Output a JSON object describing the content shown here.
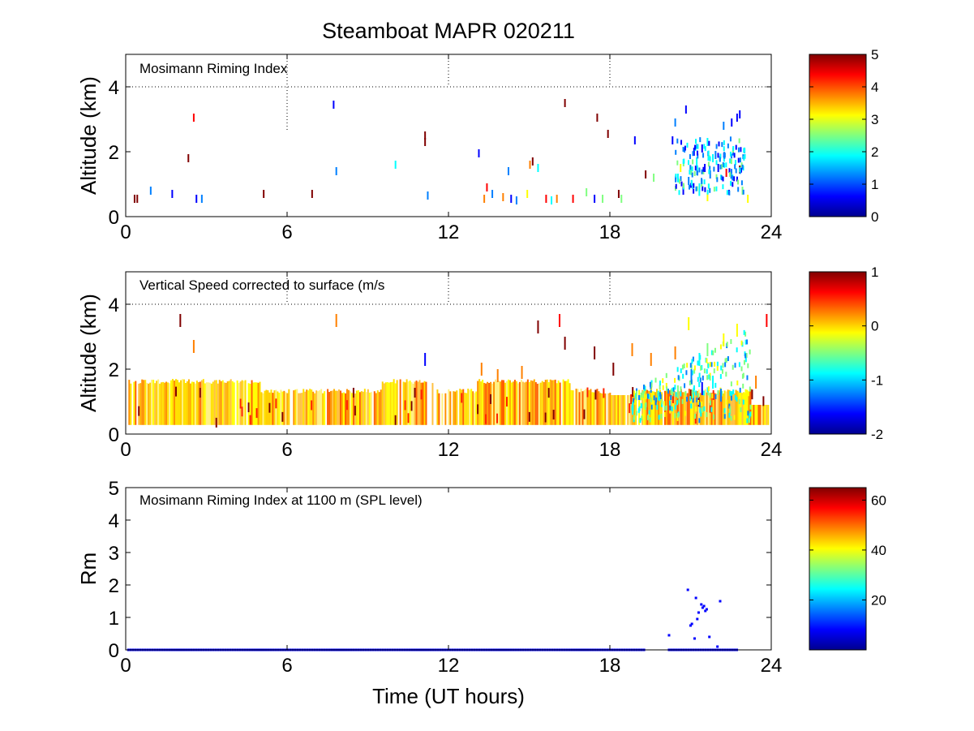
{
  "figure": {
    "title": "Steamboat MAPR 020211",
    "xlabel": "Time (UT hours)"
  },
  "colormap": [
    "#00008f",
    "#0000ff",
    "#0080ff",
    "#00ffff",
    "#80ff80",
    "#ffff00",
    "#ff8000",
    "#ff0000",
    "#800000"
  ],
  "chart_data": [
    {
      "type": "heatmap",
      "title": "Mosimann Riming Index",
      "ylabel": "Altitude (km)",
      "xlim": [
        0,
        24
      ],
      "ylim": [
        0,
        5
      ],
      "xticks": [
        "0",
        "6",
        "12",
        "18",
        "24"
      ],
      "yticks": [
        "0",
        "2",
        "4"
      ],
      "grid": "dotted",
      "colorbar": {
        "min": 0,
        "max": 5,
        "ticks": [
          "0",
          "1",
          "2",
          "3",
          "4",
          "5"
        ]
      },
      "points": [
        [
          0.3,
          0.55,
          4.7
        ],
        [
          0.4,
          0.55,
          4.8
        ],
        [
          0.9,
          0.8,
          1.2
        ],
        [
          1.7,
          0.7,
          0.5
        ],
        [
          2.3,
          1.8,
          4.8
        ],
        [
          2.5,
          3.05,
          4.5
        ],
        [
          2.6,
          0.55,
          0.9
        ],
        [
          2.8,
          0.55,
          1.5
        ],
        [
          5.1,
          0.7,
          4.7
        ],
        [
          6.9,
          0.7,
          4.8
        ],
        [
          7.8,
          1.4,
          1.5
        ],
        [
          7.7,
          3.45,
          0.9
        ],
        [
          10,
          1.6,
          2.0
        ],
        [
          11.1,
          2.5,
          4.8
        ],
        [
          11.1,
          2.3,
          4.9
        ],
        [
          11.2,
          0.65,
          1.0
        ],
        [
          13.1,
          1.95,
          0.8
        ],
        [
          13.3,
          0.55,
          3.5
        ],
        [
          13.4,
          0.9,
          4.3
        ],
        [
          13.6,
          0.7,
          1.5
        ],
        [
          14,
          0.6,
          4.0
        ],
        [
          14.2,
          1.4,
          1.2
        ],
        [
          14.3,
          0.55,
          0.8
        ],
        [
          14.5,
          0.5,
          1.4
        ],
        [
          14.9,
          0.7,
          3.0
        ],
        [
          15,
          1.6,
          3.6
        ],
        [
          15.1,
          1.7,
          4.7
        ],
        [
          15.3,
          1.5,
          1.9
        ],
        [
          15.6,
          0.55,
          4.4
        ],
        [
          15.8,
          0.5,
          1.8
        ],
        [
          16,
          0.55,
          4.0
        ],
        [
          16.3,
          3.5,
          4.9
        ],
        [
          16.6,
          0.55,
          4.1
        ],
        [
          17.1,
          0.75,
          2.2
        ],
        [
          17.4,
          0.55,
          0.9
        ],
        [
          17.5,
          3.05,
          4.7
        ],
        [
          17.7,
          0.55,
          2.5
        ],
        [
          17.9,
          2.55,
          4.8
        ],
        [
          18.3,
          0.7,
          4.9
        ],
        [
          18.4,
          0.55,
          2.6
        ],
        [
          18.9,
          2.35,
          0.9
        ],
        [
          19.3,
          1.3,
          4.7
        ],
        [
          19.6,
          1.2,
          2.5
        ],
        [
          20.3,
          2.35,
          0.8
        ],
        [
          20.4,
          2.9,
          1.1
        ],
        [
          20.8,
          3.3,
          0.9
        ],
        [
          20.5,
          1.2,
          1.8
        ],
        [
          20.7,
          0.8,
          0.8
        ],
        [
          20.9,
          1.1,
          1.2
        ],
        [
          21.2,
          1.7,
          1.6
        ],
        [
          21.4,
          2.1,
          0.8
        ],
        [
          21.5,
          1.5,
          0.6
        ],
        [
          21.7,
          1.3,
          1.0
        ],
        [
          21.9,
          1.9,
          1.4
        ],
        [
          21.3,
          0.9,
          1.9
        ],
        [
          21.6,
          0.6,
          3.4
        ],
        [
          22,
          1.5,
          0.9
        ],
        [
          22.2,
          2.8,
          1.2
        ],
        [
          22.5,
          2.9,
          0.7
        ],
        [
          22.7,
          3.05,
          0.8
        ],
        [
          22.8,
          3.15,
          0.9
        ],
        [
          22.3,
          1.35,
          4.1
        ],
        [
          22.8,
          1.45,
          4.7
        ],
        [
          23.1,
          0.55,
          3.2
        ],
        [
          22.9,
          0.8,
          2.5
        ],
        [
          21.1,
          2.0,
          0.5
        ],
        [
          21.8,
          1.8,
          2.0
        ],
        [
          20.6,
          1.5,
          3.0
        ],
        [
          21.0,
          1.4,
          2.2
        ],
        [
          21.6,
          2.3,
          1.8
        ]
      ]
    },
    {
      "type": "heatmap",
      "title": "Vertical Speed corrected to surface (m/s",
      "ylabel": "Altitude (km)",
      "xlim": [
        0,
        24
      ],
      "ylim": [
        0,
        5
      ],
      "xticks": [
        "0",
        "6",
        "12",
        "18",
        "24"
      ],
      "yticks": [
        "0",
        "2",
        "4"
      ],
      "grid": "dotted",
      "colorbar": {
        "min": -2,
        "max": 1,
        "ticks": [
          "-2",
          "-1",
          "0",
          "1"
        ]
      },
      "points": [
        [
          2,
          3.5,
          0.9
        ],
        [
          2.5,
          2.7,
          0.3
        ],
        [
          7.8,
          3.5,
          0.2
        ],
        [
          11.1,
          2.3,
          -1.8
        ],
        [
          15.3,
          3.3,
          0.9
        ],
        [
          16.1,
          3.5,
          0.8
        ],
        [
          16.3,
          2.8,
          0.9
        ],
        [
          17.4,
          2.5,
          0.9
        ],
        [
          18.1,
          2.0,
          0.9
        ],
        [
          18.8,
          2.6,
          0.3
        ],
        [
          19.5,
          2.3,
          0.1
        ],
        [
          20.4,
          2.5,
          0.2
        ],
        [
          20.9,
          3.4,
          -0.3
        ],
        [
          21.3,
          2.3,
          -0.9
        ],
        [
          21.6,
          2.6,
          -0.6
        ],
        [
          22.2,
          2.9,
          -0.1
        ],
        [
          22.7,
          3.2,
          -0.2
        ],
        [
          23.8,
          3.5,
          0.8
        ],
        [
          21.0,
          1.8,
          -1.2
        ],
        [
          21.4,
          1.4,
          -1.6
        ],
        [
          21.8,
          1.6,
          -0.8
        ],
        [
          22.1,
          1.2,
          -1.4
        ],
        [
          20.5,
          1.3,
          -0.6
        ],
        [
          13.2,
          2.0,
          0.1
        ],
        [
          13.8,
          1.8,
          0.2
        ],
        [
          14.7,
          1.9,
          0.4
        ],
        [
          23.4,
          1.6,
          0.3
        ]
      ]
    },
    {
      "type": "scatter",
      "title": "Mosimann Riming Index at 1100 m (SPL level)",
      "ylabel": "Rm",
      "xlim": [
        0,
        24
      ],
      "ylim": [
        0,
        5
      ],
      "xticks": [
        "0",
        "6",
        "12",
        "18",
        "24"
      ],
      "yticks": [
        "0",
        "1",
        "2",
        "3",
        "4",
        "5"
      ],
      "colorbar": {
        "min": 0,
        "max": 65,
        "ticks": [
          "20",
          "40",
          "60"
        ]
      },
      "x": [
        20.2,
        20.9,
        21.05,
        21.15,
        21.25,
        21.3,
        21.4,
        21.45,
        21.5,
        21.55,
        21.6,
        21.7,
        22.0,
        22.1,
        21.2,
        21.0
      ],
      "y": [
        0.45,
        1.85,
        0.8,
        0.35,
        0.95,
        1.15,
        1.4,
        1.3,
        1.35,
        1.2,
        1.25,
        0.4,
        0.1,
        1.5,
        1.6,
        0.75
      ],
      "zero_from": [
        0.1,
        19.3
      ],
      "zero_from2": [
        20.2,
        22.8
      ]
    }
  ]
}
